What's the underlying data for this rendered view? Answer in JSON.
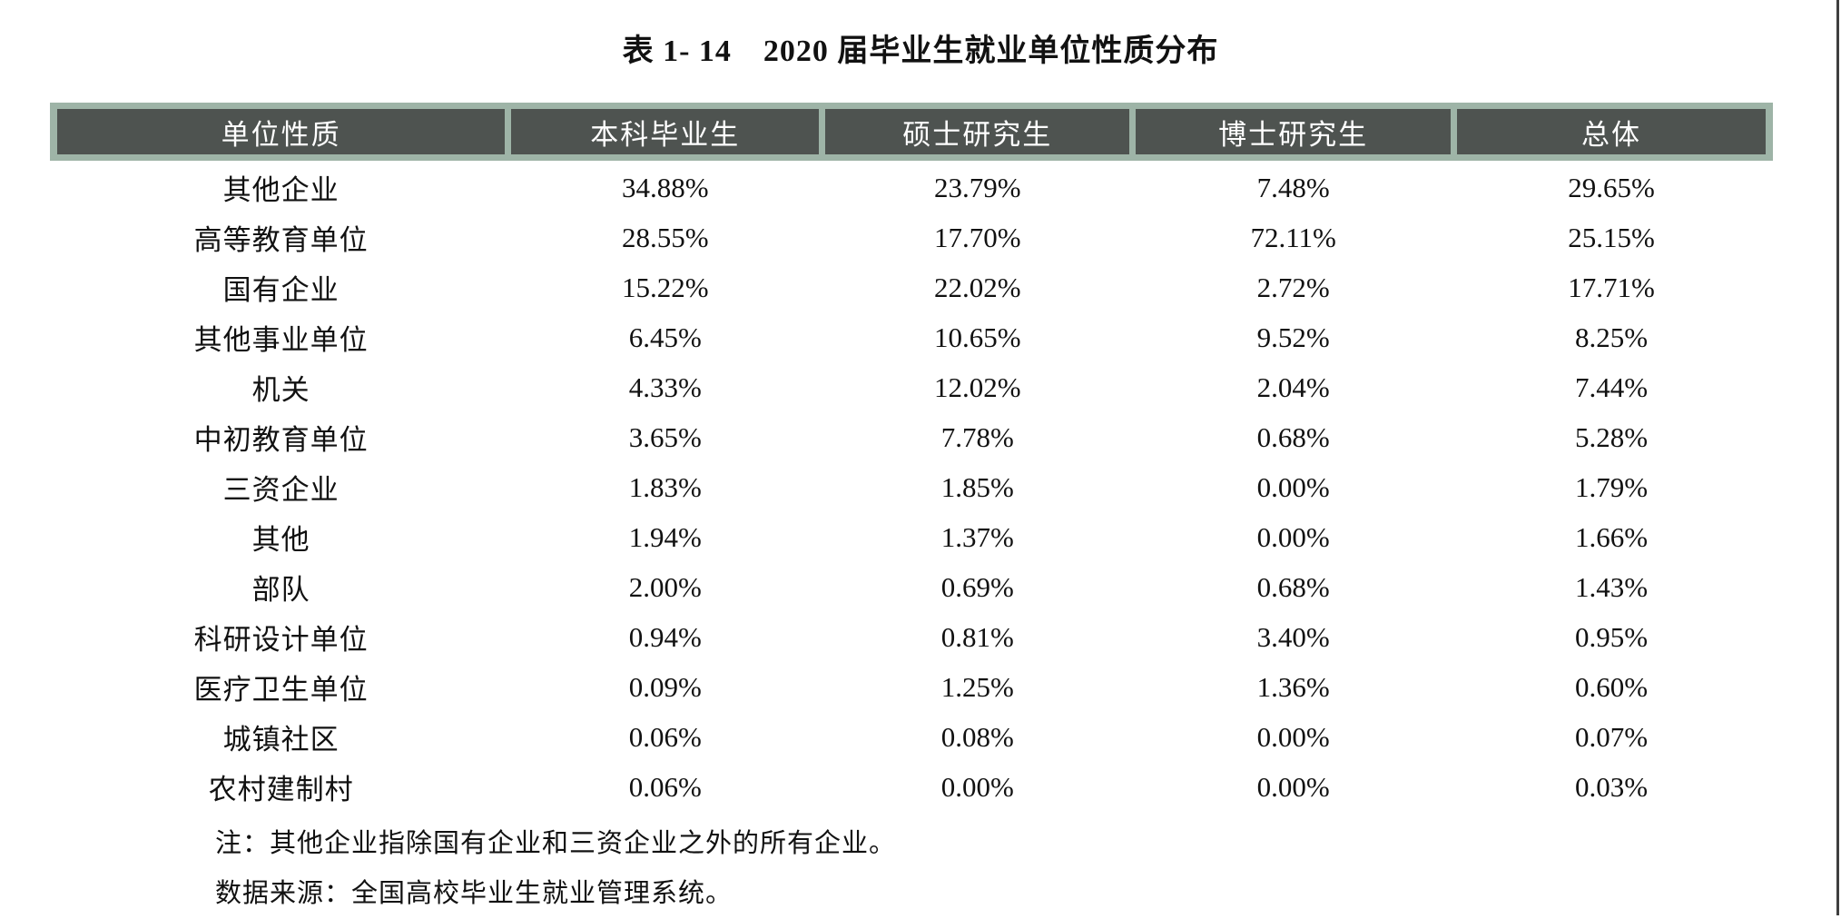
{
  "title": "表 1- 14　2020 届毕业生就业单位性质分布",
  "table": {
    "headers": [
      "单位性质",
      "本科毕业生",
      "硕士研究生",
      "博士研究生",
      "总体"
    ],
    "rows": [
      {
        "label": "其他企业",
        "values": [
          "34.88%",
          "23.79%",
          "7.48%",
          "29.65%"
        ]
      },
      {
        "label": "高等教育单位",
        "values": [
          "28.55%",
          "17.70%",
          "72.11%",
          "25.15%"
        ]
      },
      {
        "label": "国有企业",
        "values": [
          "15.22%",
          "22.02%",
          "2.72%",
          "17.71%"
        ]
      },
      {
        "label": "其他事业单位",
        "values": [
          "6.45%",
          "10.65%",
          "9.52%",
          "8.25%"
        ]
      },
      {
        "label": "机关",
        "values": [
          "4.33%",
          "12.02%",
          "2.04%",
          "7.44%"
        ]
      },
      {
        "label": "中初教育单位",
        "values": [
          "3.65%",
          "7.78%",
          "0.68%",
          "5.28%"
        ]
      },
      {
        "label": "三资企业",
        "values": [
          "1.83%",
          "1.85%",
          "0.00%",
          "1.79%"
        ]
      },
      {
        "label": "其他",
        "values": [
          "1.94%",
          "1.37%",
          "0.00%",
          "1.66%"
        ]
      },
      {
        "label": "部队",
        "values": [
          "2.00%",
          "0.69%",
          "0.68%",
          "1.43%"
        ]
      },
      {
        "label": "科研设计单位",
        "values": [
          "0.94%",
          "0.81%",
          "3.40%",
          "0.95%"
        ]
      },
      {
        "label": "医疗卫生单位",
        "values": [
          "0.09%",
          "1.25%",
          "1.36%",
          "0.60%"
        ]
      },
      {
        "label": "城镇社区",
        "values": [
          "0.06%",
          "0.08%",
          "0.00%",
          "0.07%"
        ]
      },
      {
        "label": "农村建制村",
        "values": [
          "0.06%",
          "0.00%",
          "0.00%",
          "0.03%"
        ]
      }
    ]
  },
  "notes": [
    "注：其他企业指除国有企业和三资企业之外的所有企业。",
    "数据来源：全国高校毕业生就业管理系统。"
  ],
  "colors": {
    "header_bg": "#4e5350",
    "header_border": "#9eb4a7",
    "header_text": "#ffffff"
  }
}
